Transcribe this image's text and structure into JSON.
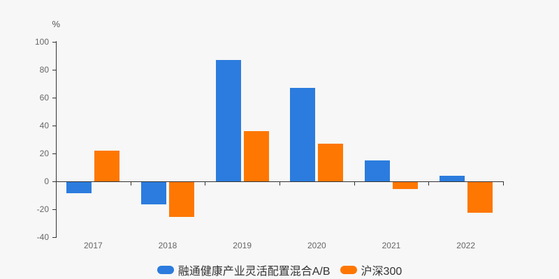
{
  "chart_data": {
    "type": "bar",
    "title": "",
    "xlabel": "",
    "ylabel": "%",
    "categories": [
      "2017",
      "2018",
      "2019",
      "2020",
      "2021",
      "2022"
    ],
    "series": [
      {
        "name": "融通健康产业灵活配置混合A/B",
        "color": "#2b7cde",
        "values": [
          -8,
          -16,
          87,
          67,
          15,
          4
        ]
      },
      {
        "name": "沪深300",
        "color": "#fe7702",
        "values": [
          22,
          -25,
          36,
          27,
          -5,
          -22
        ]
      }
    ],
    "ylim": [
      -40,
      100
    ],
    "ytick_step": 20,
    "grid": false,
    "legend_position": "bottom"
  },
  "colors": {
    "background": "#f7f7f7",
    "axis": "#333333",
    "tick_label": "#666666",
    "legend_text": "#333333"
  }
}
